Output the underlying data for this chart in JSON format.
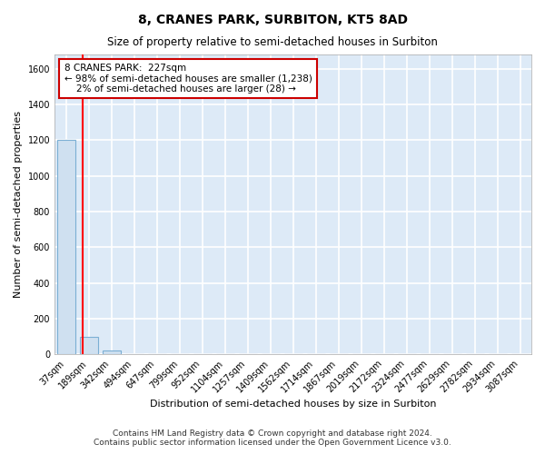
{
  "title": "8, CRANES PARK, SURBITON, KT5 8AD",
  "subtitle": "Size of property relative to semi-detached houses in Surbiton",
  "xlabel": "Distribution of semi-detached houses by size in Surbiton",
  "ylabel": "Number of semi-detached properties",
  "categories": [
    "37sqm",
    "189sqm",
    "342sqm",
    "494sqm",
    "647sqm",
    "799sqm",
    "952sqm",
    "1104sqm",
    "1257sqm",
    "1409sqm",
    "1562sqm",
    "1714sqm",
    "1867sqm",
    "2019sqm",
    "2172sqm",
    "2324sqm",
    "2477sqm",
    "2629sqm",
    "2782sqm",
    "2934sqm",
    "3087sqm"
  ],
  "values": [
    1200,
    100,
    20,
    0,
    0,
    0,
    0,
    0,
    0,
    0,
    0,
    0,
    0,
    0,
    0,
    0,
    0,
    0,
    0,
    0,
    0
  ],
  "bar_color": "#cfe0f0",
  "bar_edge_color": "#7bafd4",
  "red_line_x": 0.75,
  "annotation_text": "8 CRANES PARK:  227sqm\n← 98% of semi-detached houses are smaller (1,238)\n    2% of semi-detached houses are larger (28) →",
  "annotation_box_color": "#ffffff",
  "annotation_edge_color": "#cc0000",
  "ylim": [
    0,
    1680
  ],
  "yticks": [
    0,
    200,
    400,
    600,
    800,
    1000,
    1200,
    1400,
    1600
  ],
  "footer1": "Contains HM Land Registry data © Crown copyright and database right 2024.",
  "footer2": "Contains public sector information licensed under the Open Government Licence v3.0.",
  "background_color": "#ddeaf7",
  "grid_color": "#ffffff",
  "title_fontsize": 10,
  "subtitle_fontsize": 8.5,
  "label_fontsize": 8,
  "tick_fontsize": 7,
  "footer_fontsize": 6.5,
  "ann_fontsize": 7.5
}
